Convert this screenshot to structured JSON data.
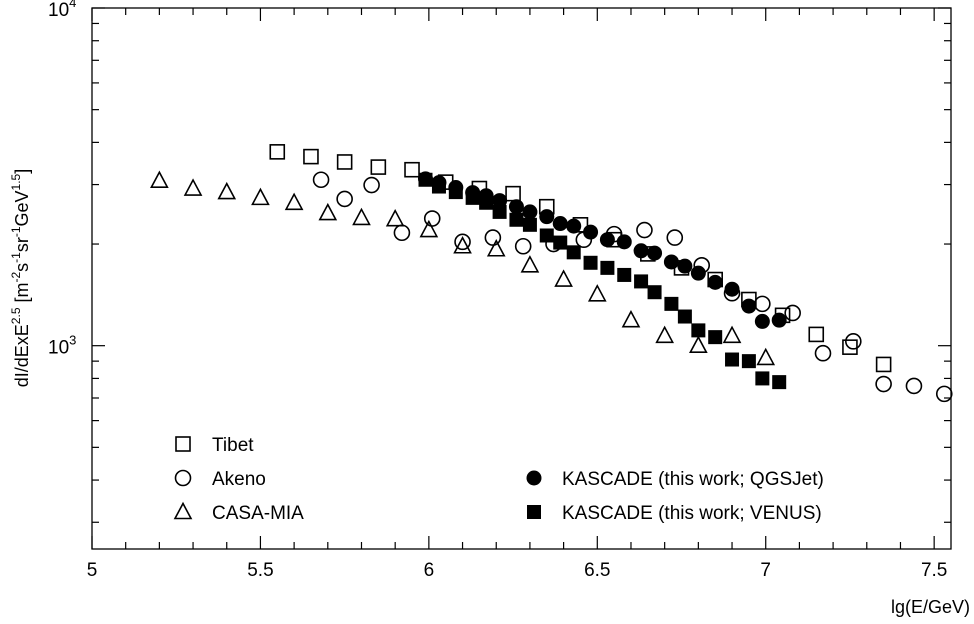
{
  "chart_data": {
    "type": "scatter",
    "xlabel": "lg(E/GeV)",
    "ylabel": {
      "parts": [
        {
          "t": "dI/dExE",
          "s": "n"
        },
        {
          "t": "2.5",
          "s": "sup"
        },
        {
          "t": " [m",
          "s": "n"
        },
        {
          "t": "-2",
          "s": "sup"
        },
        {
          "t": "s",
          "s": "n"
        },
        {
          "t": "-1",
          "s": "sup"
        },
        {
          "t": "sr",
          "s": "n"
        },
        {
          "t": "-1",
          "s": "sup"
        },
        {
          "t": "GeV",
          "s": "n"
        },
        {
          "t": "1.5",
          "s": "sup"
        },
        {
          "t": "]",
          "s": "n"
        }
      ]
    },
    "xlim": [
      5,
      7.55
    ],
    "ylim": [
      250,
      10000
    ],
    "y_scale": "log",
    "x_ticks": [
      {
        "value": 5,
        "label": "5"
      },
      {
        "value": 5.5,
        "label": "5.5"
      },
      {
        "value": 6,
        "label": "6"
      },
      {
        "value": 6.5,
        "label": "6.5"
      },
      {
        "value": 7,
        "label": "7"
      },
      {
        "value": 7.5,
        "label": "7.5"
      }
    ],
    "y_ticks": [
      {
        "value": 1000,
        "base": "10",
        "exp": "3"
      },
      {
        "value": 10000,
        "base": "10",
        "exp": "4"
      }
    ],
    "grid": false,
    "legend_placement": "bottom",
    "series": [
      {
        "name": "Tibet",
        "marker": "open-square",
        "points": [
          [
            5.55,
            3750
          ],
          [
            5.65,
            3630
          ],
          [
            5.75,
            3500
          ],
          [
            5.85,
            3380
          ],
          [
            5.95,
            3320
          ],
          [
            6.05,
            3050
          ],
          [
            6.15,
            2920
          ],
          [
            6.25,
            2820
          ],
          [
            6.35,
            2580
          ],
          [
            6.45,
            2280
          ],
          [
            6.55,
            2060
          ],
          [
            6.65,
            1870
          ],
          [
            6.75,
            1700
          ],
          [
            6.85,
            1570
          ],
          [
            6.95,
            1370
          ],
          [
            7.05,
            1230
          ],
          [
            7.15,
            1080
          ],
          [
            7.25,
            990
          ],
          [
            7.35,
            880
          ]
        ]
      },
      {
        "name": "Akeno",
        "marker": "open-circle",
        "points": [
          [
            5.68,
            3100
          ],
          [
            5.75,
            2720
          ],
          [
            5.83,
            2990
          ],
          [
            5.92,
            2160
          ],
          [
            6.01,
            2380
          ],
          [
            6.1,
            2030
          ],
          [
            6.19,
            2090
          ],
          [
            6.28,
            1970
          ],
          [
            6.37,
            2000
          ],
          [
            6.46,
            2060
          ],
          [
            6.55,
            2140
          ],
          [
            6.64,
            2200
          ],
          [
            6.73,
            2090
          ],
          [
            6.81,
            1730
          ],
          [
            6.9,
            1430
          ],
          [
            6.99,
            1330
          ],
          [
            7.08,
            1250
          ],
          [
            7.17,
            950
          ],
          [
            7.26,
            1030
          ],
          [
            7.35,
            770
          ],
          [
            7.44,
            760
          ],
          [
            7.53,
            720
          ]
        ]
      },
      {
        "name": "CASA-MIA",
        "marker": "open-triangle",
        "points": [
          [
            5.2,
            3080
          ],
          [
            5.3,
            2920
          ],
          [
            5.4,
            2850
          ],
          [
            5.5,
            2740
          ],
          [
            5.6,
            2650
          ],
          [
            5.7,
            2470
          ],
          [
            5.8,
            2390
          ],
          [
            5.9,
            2370
          ],
          [
            6.0,
            2200
          ],
          [
            6.1,
            1970
          ],
          [
            6.2,
            1930
          ],
          [
            6.3,
            1730
          ],
          [
            6.4,
            1570
          ],
          [
            6.5,
            1420
          ],
          [
            6.6,
            1190
          ],
          [
            6.7,
            1070
          ],
          [
            6.8,
            1000
          ],
          [
            6.9,
            1070
          ],
          [
            7.0,
            920
          ]
        ]
      },
      {
        "name": "KASCADE (this work; QGSJet)",
        "marker": "filled-circle",
        "points": [
          [
            5.99,
            3120
          ],
          [
            6.03,
            3040
          ],
          [
            6.08,
            2940
          ],
          [
            6.13,
            2840
          ],
          [
            6.17,
            2780
          ],
          [
            6.21,
            2690
          ],
          [
            6.26,
            2580
          ],
          [
            6.3,
            2490
          ],
          [
            6.35,
            2410
          ],
          [
            6.39,
            2300
          ],
          [
            6.43,
            2260
          ],
          [
            6.48,
            2170
          ],
          [
            6.53,
            2060
          ],
          [
            6.58,
            2030
          ],
          [
            6.63,
            1910
          ],
          [
            6.67,
            1880
          ],
          [
            6.72,
            1770
          ],
          [
            6.76,
            1720
          ],
          [
            6.8,
            1640
          ],
          [
            6.85,
            1540
          ],
          [
            6.9,
            1470
          ],
          [
            6.95,
            1310
          ],
          [
            6.99,
            1180
          ],
          [
            7.04,
            1190
          ]
        ]
      },
      {
        "name": "KASCADE (this work; VENUS)",
        "marker": "filled-square",
        "points": [
          [
            5.99,
            3100
          ],
          [
            6.03,
            2960
          ],
          [
            6.08,
            2850
          ],
          [
            6.13,
            2740
          ],
          [
            6.17,
            2650
          ],
          [
            6.21,
            2490
          ],
          [
            6.26,
            2360
          ],
          [
            6.3,
            2280
          ],
          [
            6.35,
            2120
          ],
          [
            6.39,
            2020
          ],
          [
            6.43,
            1890
          ],
          [
            6.48,
            1760
          ],
          [
            6.53,
            1700
          ],
          [
            6.58,
            1620
          ],
          [
            6.63,
            1550
          ],
          [
            6.67,
            1440
          ],
          [
            6.72,
            1330
          ],
          [
            6.76,
            1220
          ],
          [
            6.8,
            1110
          ],
          [
            6.85,
            1060
          ],
          [
            6.9,
            910
          ],
          [
            6.95,
            900
          ],
          [
            6.99,
            800
          ],
          [
            7.04,
            780
          ]
        ]
      }
    ],
    "legend_left": [
      "Tibet",
      "Akeno",
      "CASA-MIA"
    ],
    "legend_right": [
      "KASCADE (this work; QGSJet)",
      "KASCADE (this work; VENUS)"
    ]
  }
}
